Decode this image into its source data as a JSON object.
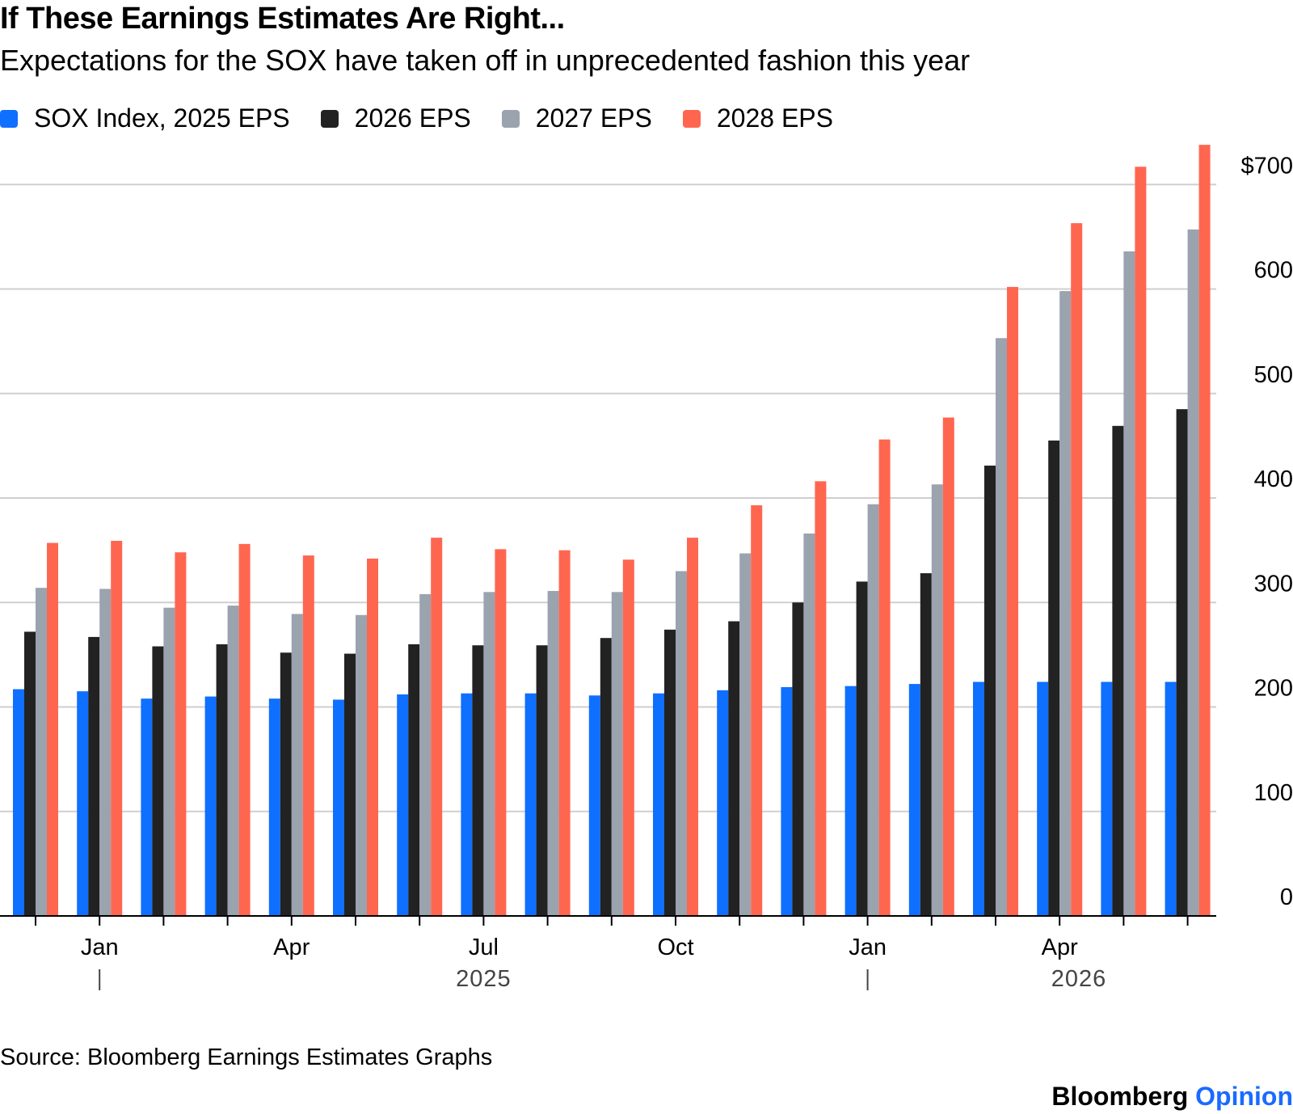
{
  "header": {
    "title": "If These Earnings Estimates Are Right...",
    "subtitle": "Expectations for the SOX have taken off in unprecedented fashion this year"
  },
  "legend": [
    {
      "label": "SOX Index, 2025 EPS",
      "color": "#0f6fff"
    },
    {
      "label": "2026 EPS",
      "color": "#222222"
    },
    {
      "label": "2027 EPS",
      "color": "#9aa3ae"
    },
    {
      "label": "2028 EPS",
      "color": "#ff6650"
    }
  ],
  "footer": {
    "source": "Source: Bloomberg Earnings Estimates Graphs",
    "brand_main": "Bloomberg",
    "brand_accent": "Opinion"
  },
  "chart_data": {
    "type": "bar",
    "categories": [
      "2024-12",
      "2025-01",
      "2025-02",
      "2025-03",
      "2025-04",
      "2025-05",
      "2025-06",
      "2025-07",
      "2025-08",
      "2025-09",
      "2025-10",
      "2025-11",
      "2025-12",
      "2026-01",
      "2026-02",
      "2026-03",
      "2026-04",
      "2026-05",
      "2026-06"
    ],
    "series": [
      {
        "name": "SOX Index, 2025 EPS",
        "color": "#0f6fff",
        "values": [
          217,
          215,
          208,
          210,
          208,
          207,
          212,
          213,
          213,
          211,
          213,
          216,
          219,
          220,
          222,
          224,
          224,
          224,
          224
        ]
      },
      {
        "name": "2026 EPS",
        "color": "#222222",
        "values": [
          272,
          267,
          258,
          260,
          252,
          251,
          260,
          259,
          259,
          266,
          274,
          282,
          300,
          320,
          328,
          431,
          455,
          469,
          485
        ]
      },
      {
        "name": "2027 EPS",
        "color": "#9aa3ae",
        "values": [
          314,
          313,
          295,
          297,
          289,
          288,
          308,
          310,
          311,
          310,
          330,
          347,
          366,
          394,
          413,
          553,
          598,
          636,
          657
        ]
      },
      {
        "name": "2028 EPS",
        "color": "#ff6650",
        "values": [
          357,
          359,
          348,
          356,
          345,
          342,
          362,
          351,
          350,
          341,
          362,
          393,
          416,
          456,
          477,
          602,
          663,
          717,
          738
        ]
      }
    ],
    "y_axis": {
      "min": 0,
      "max": 740,
      "ticks": [
        {
          "value": 0,
          "label": "0"
        },
        {
          "value": 100,
          "label": "100"
        },
        {
          "value": 200,
          "label": "200"
        },
        {
          "value": 300,
          "label": "300"
        },
        {
          "value": 400,
          "label": "400"
        },
        {
          "value": 500,
          "label": "500"
        },
        {
          "value": 600,
          "label": "600"
        },
        {
          "value": 700,
          "label": "$700"
        }
      ],
      "position": "right",
      "grid": true
    },
    "x_axis": {
      "month_labels": [
        {
          "label": "Jan",
          "category": 1
        },
        {
          "label": "Apr",
          "category": 4
        },
        {
          "label": "Jul",
          "category": 7
        },
        {
          "label": "Oct",
          "category": 10
        },
        {
          "label": "Jan",
          "category": 13
        },
        {
          "label": "Apr",
          "category": 16
        }
      ],
      "year_labels": [
        {
          "label": "2025",
          "category": 7
        },
        {
          "label": "2026",
          "category": 16.3
        }
      ],
      "year_dividers": [
        1,
        13
      ]
    },
    "legend_position": "top-left"
  }
}
